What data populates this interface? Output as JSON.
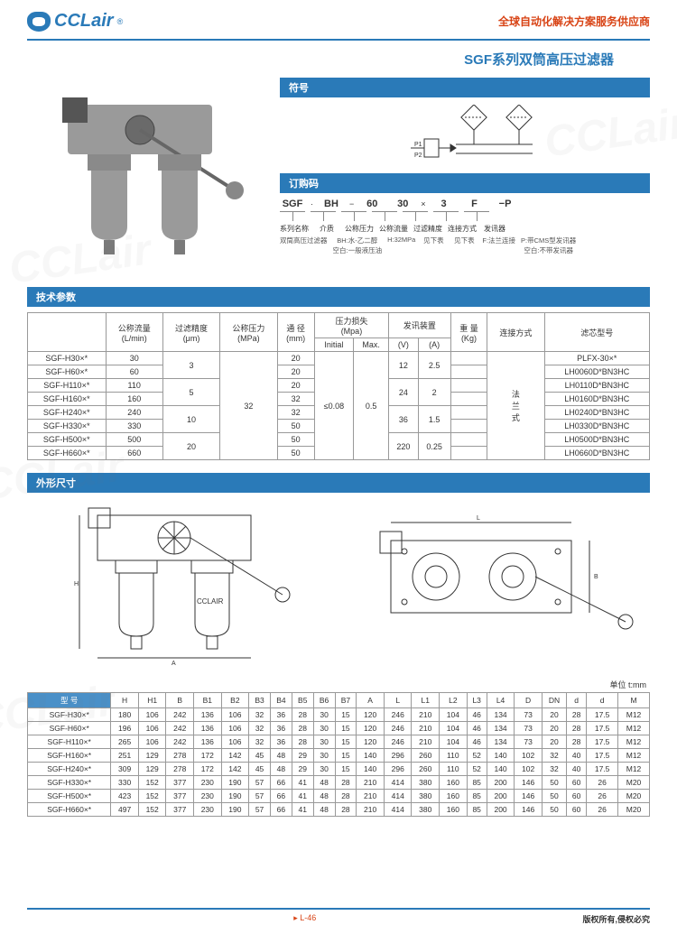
{
  "header": {
    "logo_text": "CCLair",
    "logo_r": "®",
    "tagline": "全球自动化解决方案服务供应商"
  },
  "page_title": "SGF系列双筒高压过滤器",
  "sections": {
    "symbol": "符号",
    "order": "订购码",
    "tech": "技术参数",
    "dim": "外形尺寸"
  },
  "symbol_labels": {
    "p1": "P1",
    "p2": "P2"
  },
  "order_code": {
    "segs": [
      "SGF",
      "BH",
      "60",
      "30",
      "3",
      "F",
      "−P"
    ],
    "seps": [
      "·",
      "−",
      "",
      "×",
      "",
      "",
      ""
    ],
    "labels": [
      "系列名称",
      "介质",
      "公称压力",
      "公称流量",
      "过滤精度",
      "连接方式",
      "发讯器"
    ],
    "sub": [
      "双筒高压过滤器",
      "BH:水-乙二醇\n空白:一般液压油",
      "H:32MPa",
      "见下表",
      "见下表",
      "F:法兰连接",
      "P:带CMS型发讯器\n空白:不带发讯器"
    ]
  },
  "tech_table": {
    "headers": [
      "型 号",
      "公称流量\n(L/min)",
      "过滤精度\n(μm)",
      "公称压力\n(MPa)",
      "通 径\n(mm)",
      "压力损失\n(Mpa)",
      "",
      "发讯装置",
      "",
      "重 量\n(Kg)",
      "连接方式",
      "滤芯型号"
    ],
    "sub_headers": [
      "",
      "",
      "",
      "",
      "",
      "Initial",
      "Max.",
      "(V)",
      "(A)",
      "",
      "",
      ""
    ],
    "rows": [
      [
        "SGF-H30×*",
        "30",
        "3",
        "32",
        "20",
        "≤0.08",
        "0.5",
        "12",
        "2.5",
        "",
        "法兰式",
        "PLFX-30×*"
      ],
      [
        "SGF-H60×*",
        "60",
        "",
        "",
        "20",
        "",
        "",
        "",
        "",
        "",
        "",
        "LH0060D*BN3HC"
      ],
      [
        "SGF-H110×*",
        "110",
        "5",
        "",
        "20",
        "",
        "",
        "24",
        "2",
        "",
        "",
        "LH0110D*BN3HC"
      ],
      [
        "SGF-H160×*",
        "160",
        "",
        "",
        "32",
        "",
        "",
        "",
        "",
        "",
        "",
        "LH0160D*BN3HC"
      ],
      [
        "SGF-H240×*",
        "240",
        "10",
        "",
        "32",
        "",
        "",
        "36",
        "1.5",
        "",
        "",
        "LH0240D*BN3HC"
      ],
      [
        "SGF-H330×*",
        "330",
        "",
        "",
        "50",
        "",
        "",
        "",
        "",
        "",
        "",
        "LH0330D*BN3HC"
      ],
      [
        "SGF-H500×*",
        "500",
        "20",
        "",
        "50",
        "",
        "",
        "220",
        "0.25",
        "",
        "",
        "LH0500D*BN3HC"
      ],
      [
        "SGF-H660×*",
        "660",
        "",
        "",
        "50",
        "",
        "",
        "",
        "",
        "",
        "",
        "LH0660D*BN3HC"
      ]
    ],
    "merges": {
      "col2": [
        [
          0,
          2,
          "3"
        ],
        [
          2,
          2,
          "5"
        ],
        [
          4,
          2,
          "10"
        ],
        [
          6,
          2,
          "20"
        ]
      ],
      "col3": [
        [
          0,
          8,
          "32"
        ]
      ],
      "col5": [
        [
          0,
          8,
          "≤0.08"
        ]
      ],
      "col6": [
        [
          0,
          8,
          "0.5"
        ]
      ],
      "col7": [
        [
          0,
          2,
          "12"
        ],
        [
          2,
          2,
          "24"
        ],
        [
          4,
          2,
          "36"
        ],
        [
          6,
          2,
          "220"
        ]
      ],
      "col8": [
        [
          0,
          2,
          "2.5"
        ],
        [
          2,
          2,
          "2"
        ],
        [
          4,
          2,
          "1.5"
        ],
        [
          6,
          2,
          "0.25"
        ]
      ],
      "col10": [
        [
          0,
          8,
          "法\n兰\n式"
        ]
      ]
    }
  },
  "unit_label": "单位 t:mm",
  "drawing_label": "CCLAIR",
  "dim_table": {
    "headers": [
      "型 号",
      "H",
      "H1",
      "B",
      "B1",
      "B2",
      "B3",
      "B4",
      "B5",
      "B6",
      "B7",
      "A",
      "L",
      "L1",
      "L2",
      "L3",
      "L4",
      "D",
      "DN",
      "d",
      "d",
      "M"
    ],
    "rows": [
      [
        "SGF-H30×*",
        "180",
        "106",
        "242",
        "136",
        "106",
        "32",
        "36",
        "28",
        "30",
        "15",
        "120",
        "246",
        "210",
        "104",
        "46",
        "134",
        "73",
        "20",
        "28",
        "17.5",
        "M12"
      ],
      [
        "SGF-H60×*",
        "196",
        "106",
        "242",
        "136",
        "106",
        "32",
        "36",
        "28",
        "30",
        "15",
        "120",
        "246",
        "210",
        "104",
        "46",
        "134",
        "73",
        "20",
        "28",
        "17.5",
        "M12"
      ],
      [
        "SGF-H110×*",
        "265",
        "106",
        "242",
        "136",
        "106",
        "32",
        "36",
        "28",
        "30",
        "15",
        "120",
        "246",
        "210",
        "104",
        "46",
        "134",
        "73",
        "20",
        "28",
        "17.5",
        "M12"
      ],
      [
        "SGF-H160×*",
        "251",
        "129",
        "278",
        "172",
        "142",
        "45",
        "48",
        "29",
        "30",
        "15",
        "140",
        "296",
        "260",
        "110",
        "52",
        "140",
        "102",
        "32",
        "40",
        "17.5",
        "M12"
      ],
      [
        "SGF-H240×*",
        "309",
        "129",
        "278",
        "172",
        "142",
        "45",
        "48",
        "29",
        "30",
        "15",
        "140",
        "296",
        "260",
        "110",
        "52",
        "140",
        "102",
        "32",
        "40",
        "17.5",
        "M12"
      ],
      [
        "SGF-H330×*",
        "330",
        "152",
        "377",
        "230",
        "190",
        "57",
        "66",
        "41",
        "48",
        "28",
        "210",
        "414",
        "380",
        "160",
        "85",
        "200",
        "146",
        "50",
        "60",
        "26",
        "M20"
      ],
      [
        "SGF-H500×*",
        "423",
        "152",
        "377",
        "230",
        "190",
        "57",
        "66",
        "41",
        "48",
        "28",
        "210",
        "414",
        "380",
        "160",
        "85",
        "200",
        "146",
        "50",
        "60",
        "26",
        "M20"
      ],
      [
        "SGF-H660×*",
        "497",
        "152",
        "377",
        "230",
        "190",
        "57",
        "66",
        "41",
        "48",
        "28",
        "210",
        "414",
        "380",
        "160",
        "85",
        "200",
        "146",
        "50",
        "60",
        "26",
        "M20"
      ]
    ]
  },
  "footer": {
    "page_num": "L-46",
    "bullet": "▸",
    "copyright": "版权所有,侵权必究"
  }
}
